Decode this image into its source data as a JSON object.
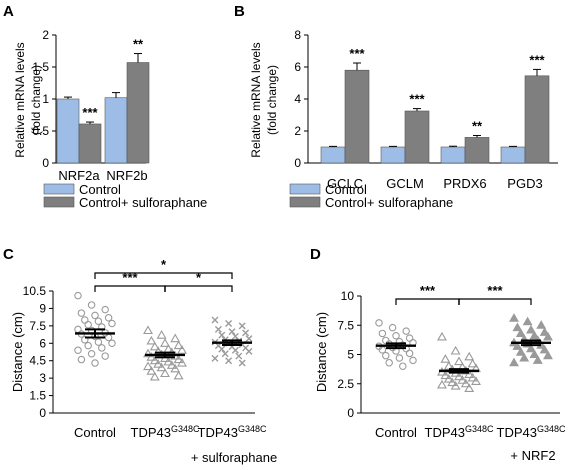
{
  "colors": {
    "control": "#9dbde6",
    "treated": "#7f7f7f",
    "scatter": "#9a9a9a",
    "axis": "#000000"
  },
  "chart_data": [
    {
      "panel": "A",
      "type": "bar",
      "ylabel": [
        "Relative mRNA levels",
        "(fold change)"
      ],
      "ylim": [
        0,
        2
      ],
      "yticks": [
        "0",
        "0.5",
        "1",
        "1.5",
        "2"
      ],
      "categories": [
        "NRF2a",
        "NRF2b"
      ],
      "series": [
        {
          "name": "Control",
          "values": [
            1.0,
            1.02
          ],
          "errors": [
            0.03,
            0.08
          ]
        },
        {
          "name": "Control+ sulforaphane",
          "values": [
            0.61,
            1.57
          ],
          "errors": [
            0.03,
            0.14
          ]
        }
      ],
      "significance": [
        "***",
        "**"
      ],
      "legend_position": "bottom"
    },
    {
      "panel": "B",
      "type": "bar",
      "ylabel": [
        "Relative mRNA levels",
        "(fold change)"
      ],
      "ylim": [
        0,
        8
      ],
      "yticks": [
        "0",
        "2",
        "4",
        "6",
        "8"
      ],
      "categories": [
        "GCLC",
        "GCLM",
        "PRDX6",
        "PGD3"
      ],
      "series": [
        {
          "name": "Control",
          "values": [
            1.0,
            1.0,
            1.0,
            1.0
          ],
          "errors": [
            0.04,
            0.04,
            0.05,
            0.04
          ]
        },
        {
          "name": "Control+ sulforaphane",
          "values": [
            5.8,
            3.25,
            1.6,
            5.45
          ],
          "errors": [
            0.45,
            0.15,
            0.12,
            0.4
          ]
        }
      ],
      "significance": [
        "***",
        "***",
        "**",
        "***"
      ],
      "legend_position": "bottom"
    },
    {
      "panel": "C",
      "type": "scatter",
      "ylabel": "Distance (cm)",
      "ylim": [
        0,
        10.5
      ],
      "yticks": [
        "0",
        "1.5",
        "3",
        "4.5",
        "6",
        "7.5",
        "9",
        "10.5"
      ],
      "categories": [
        "Control",
        "TDP43G348C",
        "TDP43G348C + sulforaphane"
      ],
      "category_labels": [
        {
          "base": "Control",
          "sup": "",
          "line2": ""
        },
        {
          "base": "TDP43",
          "sup": "G348C",
          "line2": ""
        },
        {
          "base": "TDP43",
          "sup": "G348C",
          "line2": "+ sulforaphane"
        }
      ],
      "markers": [
        "circle",
        "triangle",
        "cross"
      ],
      "groups": [
        {
          "mean": 6.85,
          "sem": 0.35,
          "values": [
            10.1,
            9.3,
            8.9,
            8.6,
            8.4,
            8.2,
            8.0,
            7.9,
            7.7,
            7.6,
            7.4,
            7.2,
            7.1,
            6.9,
            6.8,
            6.6,
            6.5,
            6.3,
            6.1,
            6.0,
            5.8,
            5.6,
            5.4,
            5.1,
            4.9,
            4.6,
            4.3
          ]
        },
        {
          "mean": 5.0,
          "sem": 0.2,
          "values": [
            7.1,
            6.7,
            6.4,
            6.2,
            6.0,
            5.8,
            5.7,
            5.5,
            5.4,
            5.3,
            5.2,
            5.1,
            5.0,
            4.9,
            4.8,
            4.7,
            4.6,
            4.5,
            4.4,
            4.3,
            4.2,
            4.1,
            4.0,
            3.9,
            3.8,
            3.6,
            3.4,
            3.2,
            3.1
          ]
        },
        {
          "mean": 6.05,
          "sem": 0.2,
          "values": [
            8.0,
            7.7,
            7.5,
            7.2,
            7.0,
            6.9,
            6.7,
            6.6,
            6.4,
            6.3,
            6.2,
            6.1,
            6.0,
            5.9,
            5.8,
            5.7,
            5.6,
            5.5,
            5.4,
            5.3,
            5.1,
            4.9,
            4.7,
            4.5,
            4.3
          ]
        }
      ],
      "comparisons": [
        {
          "from": 0,
          "to": 2,
          "label": "*",
          "level": 2
        },
        {
          "from": 0,
          "to": 1,
          "label": "***",
          "level": 1
        },
        {
          "from": 1,
          "to": 2,
          "label": "*",
          "level": 1
        }
      ]
    },
    {
      "panel": "D",
      "type": "scatter",
      "ylabel": "Distance (cm)",
      "ylim": [
        0,
        10
      ],
      "yticks": [
        "0",
        "2.5",
        "5",
        "7.5",
        "10"
      ],
      "categories": [
        "Control",
        "TDP43G348C",
        "TDP43G348C + NRF2"
      ],
      "category_labels": [
        {
          "base": "Control",
          "sup": "",
          "line2": ""
        },
        {
          "base": "TDP43",
          "sup": "G348C",
          "line2": ""
        },
        {
          "base": "TDP43",
          "sup": "G348C",
          "line2": "+ NRF2"
        }
      ],
      "markers": [
        "circle",
        "triangle",
        "triangle-filled"
      ],
      "groups": [
        {
          "mean": 5.75,
          "sem": 0.2,
          "values": [
            7.7,
            7.3,
            7.0,
            6.8,
            6.6,
            6.4,
            6.2,
            6.1,
            6.0,
            5.9,
            5.8,
            5.7,
            5.6,
            5.5,
            5.4,
            5.3,
            5.1,
            4.9,
            4.7,
            4.5,
            4.3,
            4.0
          ]
        },
        {
          "mean": 3.6,
          "sem": 0.15,
          "values": [
            6.5,
            5.3,
            4.8,
            4.6,
            4.4,
            4.2,
            4.0,
            3.9,
            3.8,
            3.7,
            3.6,
            3.5,
            3.4,
            3.3,
            3.2,
            3.1,
            3.0,
            2.9,
            2.8,
            2.7,
            2.6,
            2.5,
            2.4,
            2.3,
            2.1
          ]
        },
        {
          "mean": 6.0,
          "sem": 0.2,
          "values": [
            8.1,
            7.8,
            7.5,
            7.3,
            7.1,
            6.9,
            6.8,
            6.6,
            6.5,
            6.3,
            6.2,
            6.0,
            5.9,
            5.8,
            5.7,
            5.5,
            5.4,
            5.2,
            5.0,
            4.9,
            4.7,
            4.5,
            4.3
          ]
        }
      ],
      "comparisons": [
        {
          "from": 0,
          "to": 1,
          "label": "***",
          "level": 1
        },
        {
          "from": 1,
          "to": 2,
          "label": "***",
          "level": 1
        }
      ]
    }
  ]
}
